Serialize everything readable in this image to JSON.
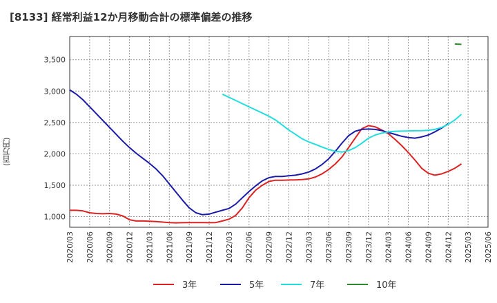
{
  "title": "[8133]  経常利益12か月移動合計の標準偏差の推移",
  "chart_data": {
    "type": "line",
    "title": "[8133]  経常利益12か月移動合計の標準偏差の推移",
    "xlabel": "",
    "ylabel": "(百万円)",
    "ylim": [
      830,
      3870
    ],
    "y_ticks": [
      1000,
      1500,
      2000,
      2500,
      3000,
      3500
    ],
    "y_tick_labels": [
      "1,000",
      "1,500",
      "2,000",
      "2,500",
      "3,000",
      "3,500"
    ],
    "x_tick_labels": [
      "2020/03",
      "2020/06",
      "2020/09",
      "2020/12",
      "2021/03",
      "2021/06",
      "2021/09",
      "2021/12",
      "2022/03",
      "2022/06",
      "2022/09",
      "2022/12",
      "2023/03",
      "2023/06",
      "2023/09",
      "2023/12",
      "2024/03",
      "2024/06",
      "2024/09",
      "2024/12",
      "2025/03",
      "2025/06"
    ],
    "grid": true,
    "legend_position": "bottom",
    "series": [
      {
        "name": "3年",
        "color": "#dd2222",
        "start": "2020/03",
        "values": [
          1100,
          1100,
          1090,
          1060,
          1050,
          1045,
          1050,
          1040,
          1010,
          950,
          930,
          930,
          925,
          920,
          912,
          905,
          900,
          902,
          903,
          903,
          905,
          902,
          905,
          930,
          960,
          1020,
          1140,
          1300,
          1420,
          1500,
          1560,
          1580,
          1580,
          1583,
          1585,
          1590,
          1600,
          1630,
          1680,
          1750,
          1840,
          1950,
          2100,
          2250,
          2400,
          2450,
          2430,
          2380,
          2320,
          2230,
          2130,
          2020,
          1900,
          1770,
          1690,
          1660,
          1680,
          1720,
          1770,
          1840
        ]
      },
      {
        "name": "5年",
        "color": "#1a1aaa",
        "start": "2020/03",
        "values": [
          3020,
          2950,
          2860,
          2750,
          2640,
          2530,
          2420,
          2310,
          2200,
          2100,
          2010,
          1930,
          1850,
          1760,
          1650,
          1520,
          1390,
          1260,
          1140,
          1060,
          1030,
          1040,
          1070,
          1100,
          1130,
          1200,
          1300,
          1400,
          1490,
          1570,
          1620,
          1640,
          1640,
          1650,
          1660,
          1680,
          1710,
          1760,
          1830,
          1920,
          2040,
          2170,
          2290,
          2360,
          2390,
          2395,
          2390,
          2370,
          2340,
          2310,
          2280,
          2260,
          2250,
          2270,
          2300,
          2350,
          2410,
          2480
        ]
      },
      {
        "name": "7年",
        "color": "#22dddd",
        "start": "2022/02",
        "values": [
          2950,
          2900,
          2850,
          2800,
          2750,
          2700,
          2650,
          2600,
          2540,
          2460,
          2380,
          2310,
          2240,
          2190,
          2150,
          2110,
          2070,
          2040,
          2030,
          2050,
          2100,
          2170,
          2250,
          2300,
          2330,
          2350,
          2360,
          2362,
          2365,
          2368,
          2370,
          2375,
          2390,
          2420,
          2470,
          2540,
          2630
        ]
      },
      {
        "name": "10年",
        "color": "#2a8a2a",
        "start": "2025/01",
        "values": [
          3750,
          3745
        ]
      }
    ]
  }
}
